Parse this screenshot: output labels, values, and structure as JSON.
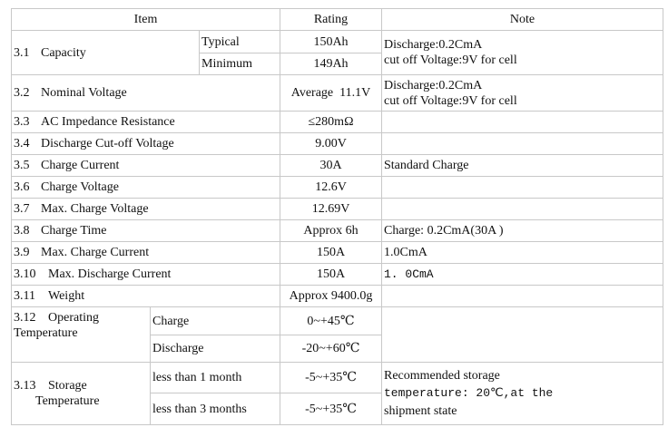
{
  "header": {
    "item": "Item",
    "rating": "Rating",
    "note": "Note"
  },
  "rows": [
    {
      "no": "3.1",
      "name": "Capacity",
      "sub": [
        {
          "label": "Typical",
          "rating": "150Ah"
        },
        {
          "label": "Minimum",
          "rating": "149Ah"
        }
      ],
      "note": [
        "Discharge:0.2CmA",
        "cut off Voltage:9V for cell"
      ]
    },
    {
      "no": "3.2",
      "name": "Nominal Voltage",
      "rating": "Average  11.1V",
      "note": [
        "Discharge:0.2CmA",
        "cut off Voltage:9V for cell"
      ]
    },
    {
      "no": "3.3",
      "name": "AC Impedance Resistance",
      "rating": "≤280mΩ",
      "note": ""
    },
    {
      "no": "3.4",
      "name": "Discharge Cut-off Voltage",
      "rating": "9.00V",
      "note": ""
    },
    {
      "no": "3.5",
      "name": "Charge Current",
      "rating": "30A",
      "note": "Standard Charge"
    },
    {
      "no": "3.6",
      "name": "Charge Voltage",
      "rating": "12.6V",
      "note": ""
    },
    {
      "no": "3.7",
      "name": "Max. Charge Voltage",
      "rating": "12.69V",
      "note": ""
    },
    {
      "no": "3.8",
      "name": "Charge Time",
      "rating": "Approx 6h",
      "note": "Charge: 0.2CmA(30A )"
    },
    {
      "no": "3.9",
      "name": "Max. Charge Current",
      "rating": "150A",
      "note": "1.0CmA"
    },
    {
      "no": "3.10",
      "name": "Max. Discharge Current",
      "rating": "150A",
      "note": "1. 0CmA"
    },
    {
      "no": "3.11",
      "name": "Weight",
      "rating": "Approx 9400.0g",
      "note": ""
    },
    {
      "no": "3.12",
      "name1": "Operating",
      "name2": "Temperature",
      "sub": [
        {
          "label": "Charge",
          "rating": "0~+45℃"
        },
        {
          "label": "Discharge",
          "rating": "-20~+60℃"
        }
      ],
      "note": ""
    },
    {
      "no": "3.13",
      "name1": "Storage",
      "name2": "Temperature",
      "sub": [
        {
          "label": "less than 1 month",
          "rating": "-5~+35℃"
        },
        {
          "label": "less than 3 months",
          "rating": "-5~+35℃"
        }
      ],
      "note": [
        "Recommended storage",
        "temperature: 20℃,at the",
        "shipment state"
      ]
    }
  ]
}
